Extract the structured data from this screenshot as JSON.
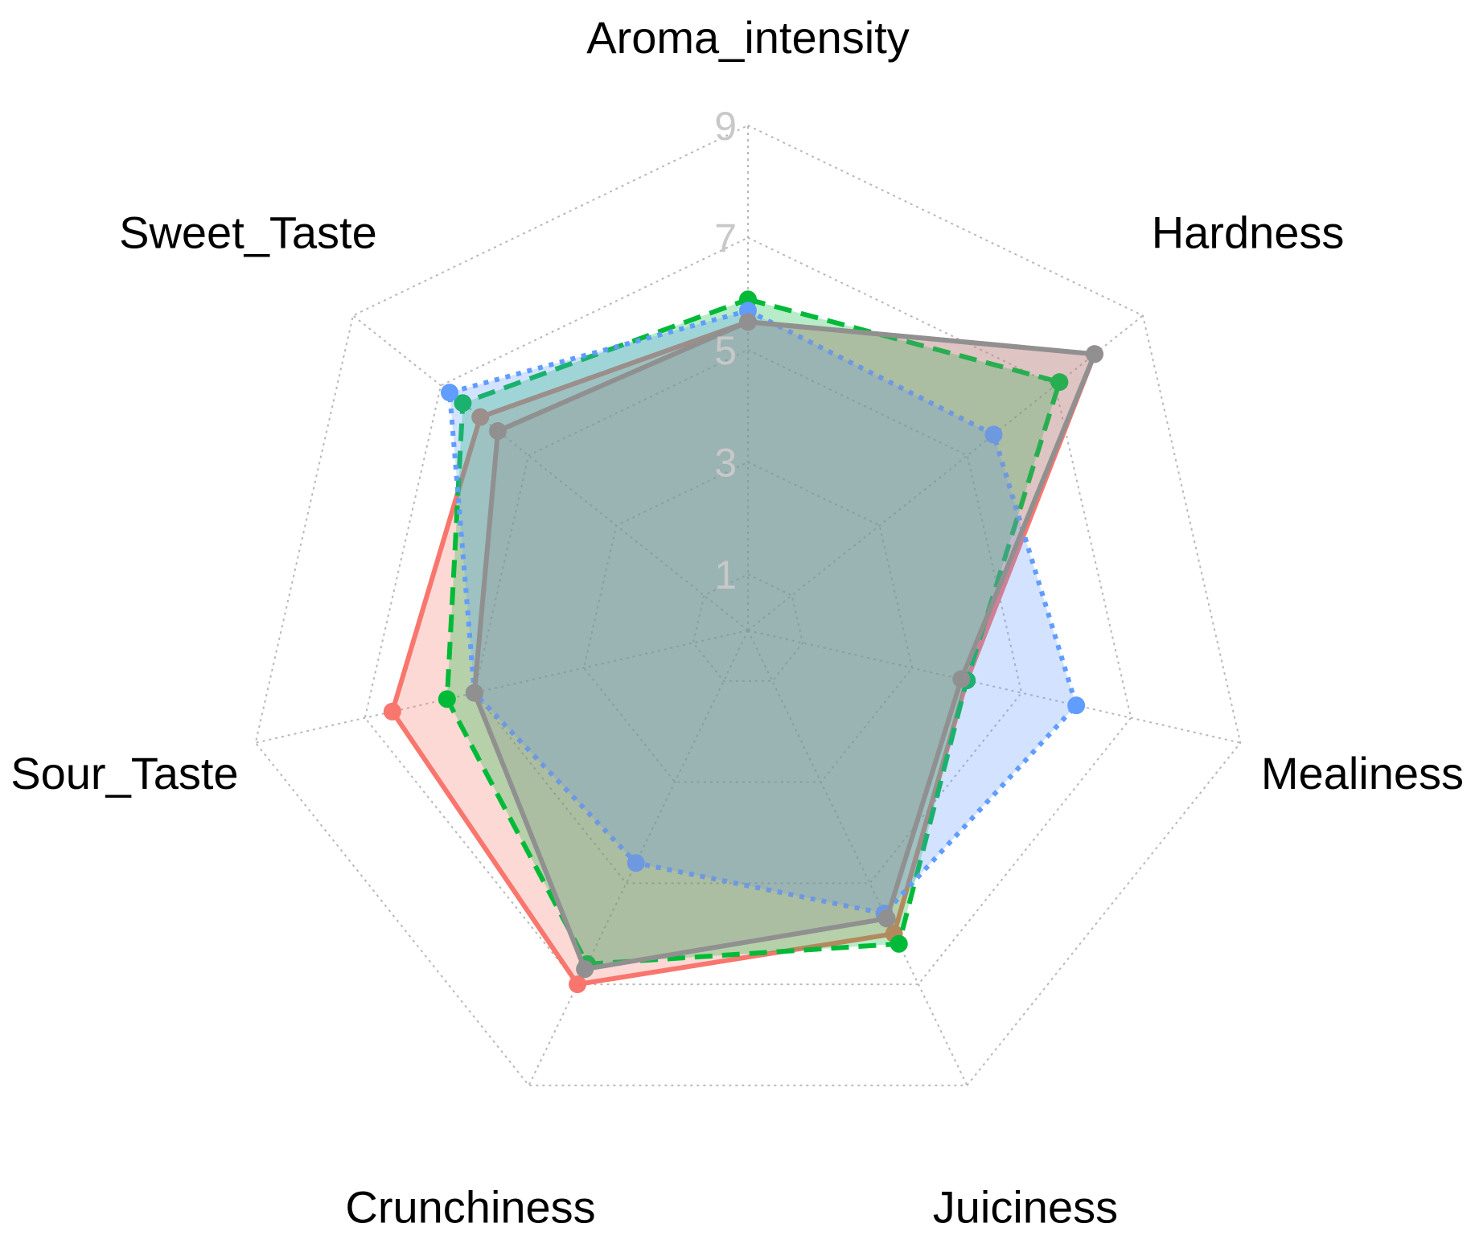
{
  "chart_data": {
    "type": "radar",
    "axes": [
      "Aroma_intensity",
      "Hardness",
      "Mealiness",
      "Juiciness",
      "Crunchiness",
      "Sour_Taste",
      "Sweet_Taste"
    ],
    "rlim": [
      0,
      9
    ],
    "ticks": [
      1,
      3,
      5,
      7,
      9
    ],
    "tick_labels": [
      "1",
      "3",
      "5",
      "7",
      "9"
    ],
    "grid": true,
    "legend": "none",
    "series": [
      {
        "color": "#F8766D",
        "line": "solid",
        "values": [
          5.5,
          7.9,
          4.0,
          6.0,
          7.0,
          6.5,
          6.1
        ]
      },
      {
        "color": "#00BA38",
        "line": "dashed",
        "values": [
          5.9,
          7.1,
          4.0,
          6.2,
          6.6,
          5.5,
          6.5
        ]
      },
      {
        "color": "#619CFF",
        "line": "dotted",
        "values": [
          5.7,
          5.6,
          6.0,
          5.6,
          4.6,
          5.0,
          6.8
        ]
      },
      {
        "color": "#909090",
        "line": "solid",
        "values": [
          5.5,
          7.9,
          3.9,
          5.7,
          6.7,
          5.0,
          5.7
        ]
      }
    ]
  }
}
